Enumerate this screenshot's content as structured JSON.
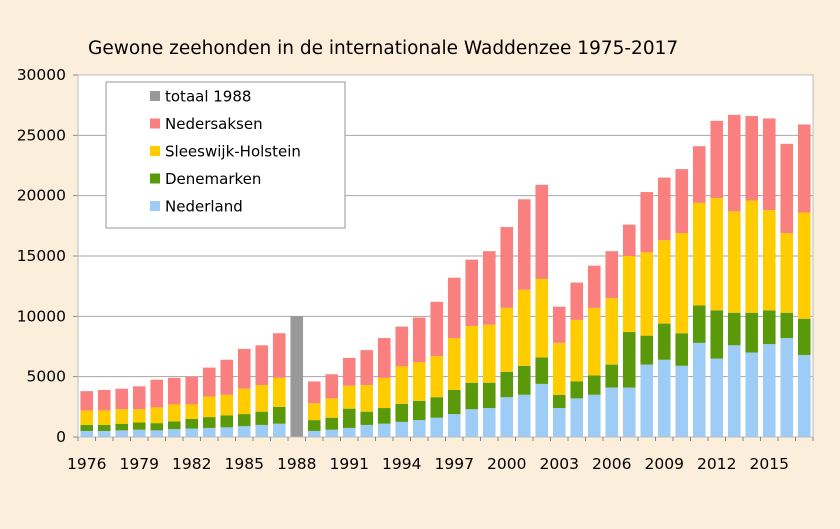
{
  "chart_data": {
    "type": "bar",
    "stacked": true,
    "title": "Gewone zeehonden in de internationale Waddenzee 1975-2017",
    "xlabel": "",
    "ylabel": "",
    "ylim": [
      0,
      30000
    ],
    "yticks": [
      "0",
      "5000",
      "10000",
      "15000",
      "20000",
      "25000",
      "30000"
    ],
    "xtick_labels": [
      "1976",
      "1979",
      "1982",
      "1985",
      "1988",
      "1991",
      "1994",
      "1997",
      "2000",
      "2003",
      "2006",
      "2009",
      "2012",
      "2015"
    ],
    "grid": "horizontal",
    "legend_position": "top-left",
    "categories": [
      1976,
      1977,
      1978,
      1979,
      1980,
      1981,
      1982,
      1983,
      1984,
      1985,
      1986,
      1987,
      1988,
      1989,
      1990,
      1991,
      1992,
      1993,
      1994,
      1995,
      1996,
      1997,
      1998,
      1999,
      2000,
      2001,
      2002,
      2003,
      2004,
      2005,
      2006,
      2007,
      2008,
      2009,
      2010,
      2011,
      2012,
      2013,
      2014,
      2015,
      2016,
      2017
    ],
    "series": [
      {
        "name": "Nederland",
        "color": "#9dccf7",
        "values": [
          500,
          500,
          550,
          600,
          550,
          650,
          700,
          750,
          800,
          900,
          1000,
          1100,
          null,
          500,
          600,
          750,
          1000,
          1100,
          1250,
          1400,
          1600,
          1900,
          2300,
          2400,
          3300,
          3500,
          4400,
          2400,
          3200,
          3500,
          4100,
          4100,
          6000,
          6400,
          5900,
          7800,
          6500,
          7600,
          7000,
          7700,
          8200,
          6800
        ]
      },
      {
        "name": "Denemarken",
        "color": "#5a9a0a",
        "values": [
          500,
          500,
          550,
          600,
          600,
          650,
          800,
          900,
          1000,
          1000,
          1100,
          1400,
          null,
          900,
          1000,
          1600,
          1100,
          1300,
          1500,
          1600,
          1700,
          2000,
          2200,
          2100,
          2100,
          2400,
          2200,
          1100,
          1400,
          1600,
          1900,
          4600,
          2400,
          3000,
          2700,
          3100,
          4000,
          2700,
          3300,
          2800,
          2100,
          3000
        ]
      },
      {
        "name": "Sleeswijk-Holstein",
        "color": "#ffcc00",
        "values": [
          1200,
          1200,
          1200,
          1100,
          1300,
          1400,
          1200,
          1700,
          1700,
          2100,
          2200,
          2400,
          null,
          1400,
          1600,
          1900,
          2200,
          2500,
          3100,
          3200,
          3400,
          4300,
          4700,
          4800,
          5300,
          6300,
          6500,
          4300,
          5100,
          5600,
          5500,
          6300,
          6900,
          6900,
          8300,
          8500,
          9300,
          8400,
          9300,
          8300,
          6600,
          8800
        ]
      },
      {
        "name": "Nedersaksen",
        "color": "#fa8080",
        "values": [
          1600,
          1700,
          1700,
          1900,
          2300,
          2200,
          2300,
          2400,
          2900,
          3300,
          3300,
          3700,
          null,
          1800,
          2000,
          2300,
          2900,
          3300,
          3300,
          3700,
          4500,
          5000,
          5500,
          6100,
          6700,
          7500,
          7800,
          3000,
          3100,
          3500,
          3900,
          2600,
          5000,
          5200,
          5300,
          4700,
          6400,
          8000,
          7000,
          7600,
          7400,
          7300
        ]
      },
      {
        "name": "totaal 1988",
        "color": "#999999",
        "values": [
          null,
          null,
          null,
          null,
          null,
          null,
          null,
          null,
          null,
          null,
          null,
          null,
          10000,
          null,
          null,
          null,
          null,
          null,
          null,
          null,
          null,
          null,
          null,
          null,
          null,
          null,
          null,
          null,
          null,
          null,
          null,
          null,
          null,
          null,
          null,
          null,
          null,
          null,
          null,
          null,
          null,
          null
        ]
      }
    ],
    "legend_order": [
      "totaal 1988",
      "Nedersaksen",
      "Sleeswijk-Holstein",
      "Denemarken",
      "Nederland"
    ]
  }
}
